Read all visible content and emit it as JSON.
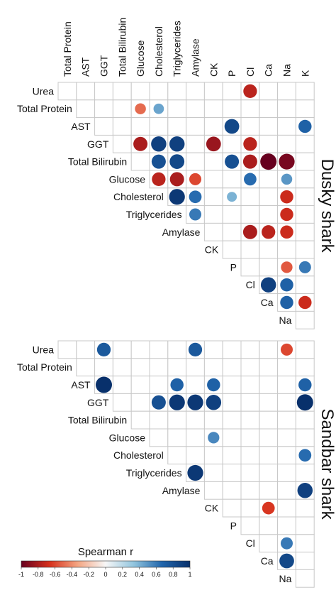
{
  "chart_data": {
    "type": "heatmap",
    "variables": [
      "Urea",
      "Total  Protein",
      "AST",
      "GGT",
      "Total  Bilirubin",
      "Glucose",
      "Cholesterol",
      "Triglycerides",
      "Amylase",
      "CK",
      "P",
      "Cl",
      "Ca",
      "Na",
      "K"
    ],
    "column_labels": [
      "Total  Protein",
      "AST",
      "GGT",
      "Total  Bilirubin",
      "Glucose",
      "Cholesterol",
      "Triglycerides",
      "Amylase",
      "CK",
      "P",
      "Cl",
      "Ca",
      "Na",
      "K"
    ],
    "row_labels": [
      "Urea",
      "Total  Protein",
      "AST",
      "GGT",
      "Total  Bilirubin",
      "Glucose",
      "Cholesterol",
      "Triglycerides",
      "Amylase",
      "CK",
      "P",
      "Cl",
      "Ca",
      "Na"
    ],
    "panels": [
      {
        "name": "Dusky shark",
        "cells": [
          {
            "row": "Urea",
            "col": "Cl",
            "r": -0.75
          },
          {
            "row": "Total  Protein",
            "col": "Glucose",
            "r": -0.5
          },
          {
            "row": "Total  Protein",
            "col": "Cholesterol",
            "r": 0.45
          },
          {
            "row": "AST",
            "col": "P",
            "r": 0.85
          },
          {
            "row": "AST",
            "col": "K",
            "r": 0.7
          },
          {
            "row": "GGT",
            "col": "Glucose",
            "r": -0.8
          },
          {
            "row": "GGT",
            "col": "Cholesterol",
            "r": 0.9
          },
          {
            "row": "GGT",
            "col": "Triglycerides",
            "r": 0.9
          },
          {
            "row": "GGT",
            "col": "CK",
            "r": -0.85
          },
          {
            "row": "GGT",
            "col": "Cl",
            "r": -0.75
          },
          {
            "row": "Total  Bilirubin",
            "col": "Cholesterol",
            "r": 0.8
          },
          {
            "row": "Total  Bilirubin",
            "col": "Triglycerides",
            "r": 0.85
          },
          {
            "row": "Total  Bilirubin",
            "col": "P",
            "r": 0.8
          },
          {
            "row": "Total  Bilirubin",
            "col": "Cl",
            "r": -0.8
          },
          {
            "row": "Total  Bilirubin",
            "col": "Ca",
            "r": -1.0
          },
          {
            "row": "Total  Bilirubin",
            "col": "Na",
            "r": -0.95
          },
          {
            "row": "Glucose",
            "col": "Cholesterol",
            "r": -0.75
          },
          {
            "row": "Glucose",
            "col": "Triglycerides",
            "r": -0.8
          },
          {
            "row": "Glucose",
            "col": "Amylase",
            "r": -0.6
          },
          {
            "row": "Glucose",
            "col": "Cl",
            "r": 0.65
          },
          {
            "row": "Glucose",
            "col": "Na",
            "r": 0.5
          },
          {
            "row": "Cholesterol",
            "col": "Triglycerides",
            "r": 0.95
          },
          {
            "row": "Cholesterol",
            "col": "Amylase",
            "r": 0.65
          },
          {
            "row": "Cholesterol",
            "col": "P",
            "r": 0.4
          },
          {
            "row": "Cholesterol",
            "col": "Na",
            "r": -0.7
          },
          {
            "row": "Triglycerides",
            "col": "Amylase",
            "r": 0.6
          },
          {
            "row": "Triglycerides",
            "col": "Na",
            "r": -0.7
          },
          {
            "row": "Amylase",
            "col": "Cl",
            "r": -0.8
          },
          {
            "row": "Amylase",
            "col": "Ca",
            "r": -0.75
          },
          {
            "row": "Amylase",
            "col": "Na",
            "r": -0.7
          },
          {
            "row": "P",
            "col": "Na",
            "r": -0.55
          },
          {
            "row": "P",
            "col": "K",
            "r": 0.6
          },
          {
            "row": "Cl",
            "col": "Ca",
            "r": 0.9
          },
          {
            "row": "Cl",
            "col": "Na",
            "r": 0.7
          },
          {
            "row": "Ca",
            "col": "Na",
            "r": 0.7
          },
          {
            "row": "Ca",
            "col": "K",
            "r": -0.7
          }
        ]
      },
      {
        "name": "Sandbar shark",
        "cells": [
          {
            "row": "Urea",
            "col": "GGT",
            "r": 0.75
          },
          {
            "row": "Urea",
            "col": "Amylase",
            "r": 0.75
          },
          {
            "row": "Urea",
            "col": "Na",
            "r": -0.6
          },
          {
            "row": "AST",
            "col": "GGT",
            "r": 1.0
          },
          {
            "row": "AST",
            "col": "Triglycerides",
            "r": 0.7
          },
          {
            "row": "AST",
            "col": "CK",
            "r": 0.7
          },
          {
            "row": "AST",
            "col": "K",
            "r": 0.7
          },
          {
            "row": "GGT",
            "col": "Cholesterol",
            "r": 0.8
          },
          {
            "row": "GGT",
            "col": "Triglycerides",
            "r": 0.95
          },
          {
            "row": "GGT",
            "col": "Amylase",
            "r": 0.95
          },
          {
            "row": "GGT",
            "col": "CK",
            "r": 0.9
          },
          {
            "row": "GGT",
            "col": "K",
            "r": 1.0
          },
          {
            "row": "Glucose",
            "col": "CK",
            "r": 0.55
          },
          {
            "row": "Cholesterol",
            "col": "K",
            "r": 0.65
          },
          {
            "row": "Triglycerides",
            "col": "Amylase",
            "r": 0.95
          },
          {
            "row": "Amylase",
            "col": "K",
            "r": 0.9
          },
          {
            "row": "CK",
            "col": "Ca",
            "r": -0.65
          },
          {
            "row": "Cl",
            "col": "Na",
            "r": 0.6
          },
          {
            "row": "Ca",
            "col": "Na",
            "r": 0.85
          }
        ]
      }
    ],
    "colorbar": {
      "title": "Spearman r",
      "range": [
        -1,
        1
      ],
      "ticks": [
        "-1",
        "-0.8",
        "-0.6",
        "-0.4",
        "-0.2",
        "0",
        "0.2",
        "0.4",
        "0.6",
        "0.8",
        "1"
      ],
      "colors": [
        "#67001f",
        "#d6301c",
        "#f4a582",
        "#f7f7f7",
        "#92c5de",
        "#2166ac",
        "#08306b"
      ]
    }
  }
}
